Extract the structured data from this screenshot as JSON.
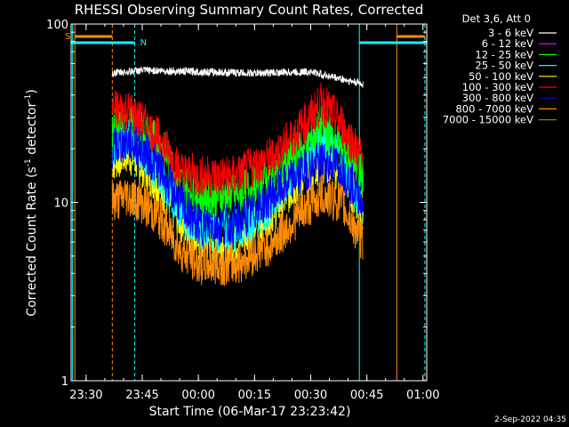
{
  "chart_data": {
    "type": "line",
    "title": "RHESSI Observing Summary Count Rates, Corrected",
    "xlabel": "Start Time (06-Mar-17 23:23:42)",
    "ylabel_main": "Corrected Count Rate (s",
    "ylabel_exp": "-1",
    "ylabel_tail": " detector",
    "ylabel_exp2": "-1",
    "ylabel_close": ")",
    "yscale": "log",
    "ylim": [
      1,
      100
    ],
    "xlim_minutes": [
      -34,
      61
    ],
    "x_ticks": [
      {
        "m": -30,
        "label": "23:30"
      },
      {
        "m": -15,
        "label": "23:45"
      },
      {
        "m": 0,
        "label": "00:00"
      },
      {
        "m": 15,
        "label": "00:15"
      },
      {
        "m": 30,
        "label": "00:30"
      },
      {
        "m": 45,
        "label": "00:45"
      },
      {
        "m": 60,
        "label": "01:00"
      }
    ],
    "y_ticks": [
      {
        "v": 1,
        "label": "1"
      },
      {
        "v": 10,
        "label": "10"
      },
      {
        "v": 100,
        "label": "100"
      }
    ],
    "legend_title": "Det 3,6, Att 0",
    "series": [
      {
        "name": "3 - 6 keV",
        "color": "#ffffff",
        "points": [
          [
            -23,
            53
          ],
          [
            -15,
            55
          ],
          [
            0,
            54
          ],
          [
            15,
            53
          ],
          [
            30,
            54
          ],
          [
            44,
            46
          ]
        ]
      },
      {
        "name": "6 - 12 keV",
        "color": "#ff00ff",
        "points": []
      },
      {
        "name": "12 - 25 keV",
        "color": "#00ff00",
        "points": [
          [
            -23,
            25
          ],
          [
            -19,
            27
          ],
          [
            -15,
            25
          ],
          [
            -10,
            21
          ],
          [
            -5,
            13
          ],
          [
            0,
            11
          ],
          [
            10,
            11
          ],
          [
            20,
            14
          ],
          [
            28,
            20
          ],
          [
            33,
            27
          ],
          [
            38,
            20
          ],
          [
            44,
            14
          ]
        ]
      },
      {
        "name": "25 - 50 keV",
        "color": "#00ffff",
        "points": [
          [
            -23,
            20
          ],
          [
            -19,
            23
          ],
          [
            -15,
            20
          ],
          [
            -10,
            14
          ],
          [
            -5,
            9
          ],
          [
            0,
            7
          ],
          [
            10,
            7
          ],
          [
            20,
            10
          ],
          [
            28,
            17
          ],
          [
            33,
            24
          ],
          [
            38,
            18
          ],
          [
            44,
            9
          ]
        ]
      },
      {
        "name": "50 - 100 keV",
        "color": "#ffff00",
        "points": [
          [
            -23,
            17
          ],
          [
            -19,
            19
          ],
          [
            -15,
            16
          ],
          [
            -10,
            12
          ],
          [
            -5,
            8
          ],
          [
            0,
            6
          ],
          [
            10,
            6
          ],
          [
            20,
            9
          ],
          [
            28,
            14
          ],
          [
            33,
            17
          ],
          [
            38,
            15
          ],
          [
            44,
            9
          ]
        ]
      },
      {
        "name": "100 - 300 keV",
        "color": "#ff0000",
        "points": [
          [
            -23,
            33
          ],
          [
            -19,
            33
          ],
          [
            -15,
            28
          ],
          [
            -10,
            22
          ],
          [
            -5,
            15
          ],
          [
            0,
            14
          ],
          [
            10,
            14
          ],
          [
            20,
            18
          ],
          [
            28,
            27
          ],
          [
            33,
            36
          ],
          [
            38,
            28
          ],
          [
            44,
            17
          ]
        ]
      },
      {
        "name": "300 - 800 keV",
        "color": "#0000ff",
        "points": [
          [
            -23,
            20
          ],
          [
            -19,
            22
          ],
          [
            -15,
            20
          ],
          [
            -10,
            15
          ],
          [
            -5,
            10
          ],
          [
            0,
            7.5
          ],
          [
            10,
            7.5
          ],
          [
            20,
            11
          ],
          [
            28,
            15
          ],
          [
            33,
            17
          ],
          [
            38,
            16
          ],
          [
            44,
            10
          ]
        ]
      },
      {
        "name": "800 - 7000 keV",
        "color": "#ff8c00",
        "points": [
          [
            -23,
            10
          ],
          [
            -19,
            11
          ],
          [
            -15,
            10
          ],
          [
            -10,
            8
          ],
          [
            -5,
            5.5
          ],
          [
            0,
            4.5
          ],
          [
            10,
            4.5
          ],
          [
            20,
            6
          ],
          [
            28,
            9
          ],
          [
            33,
            11
          ],
          [
            38,
            10
          ],
          [
            44,
            6
          ]
        ]
      },
      {
        "name": "7000 - 15000 keV",
        "color": "#808000",
        "points": []
      }
    ],
    "annotations": [
      {
        "label": "S",
        "color": "#ff8c00"
      },
      {
        "label": "N",
        "color": "#00ffff"
      }
    ],
    "grid": false,
    "legend_position": "top-right outside"
  },
  "timestamp": "2-Sep-2022 04:35"
}
